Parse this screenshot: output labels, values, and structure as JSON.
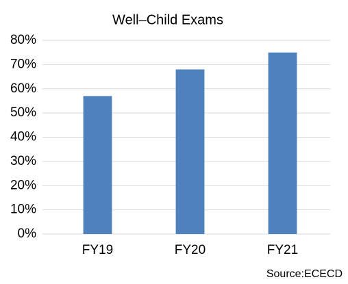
{
  "chart_data": {
    "type": "bar",
    "title": "Well–Child Exams",
    "categories": [
      "FY19",
      "FY20",
      "FY21"
    ],
    "values": [
      57,
      68,
      75
    ],
    "color": "#4f81bd",
    "ylim": [
      0,
      80
    ],
    "yticks": [
      {
        "value": 0,
        "label": "0%"
      },
      {
        "value": 10,
        "label": "10%"
      },
      {
        "value": 20,
        "label": "20%"
      },
      {
        "value": 30,
        "label": "30%"
      },
      {
        "value": 40,
        "label": "40%"
      },
      {
        "value": 50,
        "label": "50%"
      },
      {
        "value": 60,
        "label": "60%"
      },
      {
        "value": 70,
        "label": "70%"
      },
      {
        "value": 80,
        "label": "80%"
      }
    ],
    "grid": true,
    "source": "Source:ECECD"
  }
}
